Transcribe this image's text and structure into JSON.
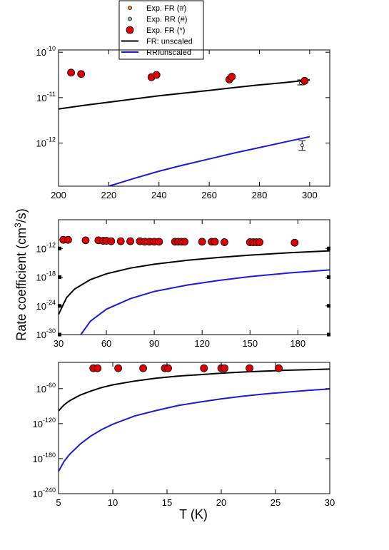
{
  "legend": [
    {
      "label": "Exp. FR (#)",
      "kind": "small-circle",
      "color": "#f0a030"
    },
    {
      "label": "Exp. RR (#)",
      "kind": "small-circle",
      "color": "#7ec8c8"
    },
    {
      "label": "Exp. FR (*)",
      "kind": "big-circle",
      "color": "#e00000"
    },
    {
      "label": "FR: unscaled",
      "kind": "line",
      "color": "#000000"
    },
    {
      "label": "RR:unscaled",
      "kind": "line",
      "color": "#1a1adc"
    }
  ],
  "ylabel_main": "Rate coefficient (cm",
  "ylabel_sup": "3",
  "ylabel_tail": "/s)",
  "xlabel": "T (K)",
  "colors": {
    "fr": "#000000",
    "rr": "#1a1adc",
    "exp": "#e00000"
  },
  "chart_data": [
    {
      "type": "line",
      "panel": "top",
      "xlim": [
        200,
        308
      ],
      "ylim": [
        -12.95,
        -9.95
      ],
      "yscale": "log10",
      "xticks": [
        200,
        220,
        240,
        260,
        280,
        300
      ],
      "xtick_labels": [
        "200",
        "220",
        "240",
        "260",
        "280",
        "300"
      ],
      "yticks": [
        -12,
        -11,
        -10
      ],
      "ytick_base": "10",
      "ytick_exps": [
        "-12",
        "-11",
        "-10"
      ],
      "series": [
        {
          "name": "FR: unscaled",
          "key": "fr",
          "x": [
            200,
            210,
            220,
            230,
            240,
            250,
            260,
            270,
            280,
            290,
            300
          ],
          "y": [
            -11.25,
            -11.17,
            -11.1,
            -11.03,
            -10.96,
            -10.9,
            -10.84,
            -10.78,
            -10.72,
            -10.67,
            -10.61
          ]
        },
        {
          "name": "RR:unscaled",
          "key": "rr",
          "x": [
            220,
            230,
            240,
            250,
            260,
            270,
            280,
            290,
            300
          ],
          "y": [
            -12.95,
            -12.78,
            -12.62,
            -12.48,
            -12.35,
            -12.22,
            -12.1,
            -11.98,
            -11.86
          ]
        }
      ],
      "exp_points": {
        "x": [
          205,
          209,
          237,
          239,
          268,
          269,
          298
        ],
        "y": [
          -10.45,
          -10.48,
          -10.55,
          -10.5,
          -10.6,
          -10.54,
          -10.63
        ]
      },
      "error_bars": [
        {
          "x": 296.5,
          "y": -10.68,
          "ylow": -10.72,
          "yhigh": -10.61
        },
        {
          "x": 297,
          "y": -12.05,
          "ylow": -12.16,
          "yhigh": -11.95
        }
      ]
    },
    {
      "type": "line",
      "panel": "middle",
      "xlim": [
        30,
        200
      ],
      "ylim": [
        -30,
        -6
      ],
      "yscale": "log10",
      "xticks": [
        30,
        60,
        90,
        120,
        150,
        180
      ],
      "xtick_labels": [
        "30",
        "60",
        "90",
        "120",
        "150",
        "180"
      ],
      "yticks": [
        -30,
        -24,
        -18,
        -12
      ],
      "ytick_base": "10",
      "ytick_exps": [
        "-30",
        "-24",
        "-18",
        "-12"
      ],
      "series": [
        {
          "name": "FR: unscaled",
          "key": "fr",
          "x": [
            30,
            35,
            40,
            50,
            60,
            75,
            90,
            110,
            130,
            150,
            175,
            200
          ],
          "y": [
            -25.8,
            -22.3,
            -20.5,
            -18.5,
            -17.3,
            -16.1,
            -15.3,
            -14.5,
            -13.9,
            -13.4,
            -12.9,
            -12.5
          ]
        },
        {
          "name": "RR:unscaled",
          "key": "rr",
          "x": [
            44,
            50,
            60,
            75,
            90,
            110,
            130,
            150,
            175,
            200
          ],
          "y": [
            -30,
            -27.2,
            -24.7,
            -22.5,
            -21,
            -19.7,
            -18.7,
            -17.9,
            -17.1,
            -16.5
          ]
        }
      ],
      "exp_points": {
        "x": [
          33,
          36,
          47,
          55,
          58,
          60,
          63,
          69,
          75,
          81,
          84,
          87,
          90,
          93,
          103,
          105,
          107,
          109,
          120,
          126,
          128,
          134,
          150,
          152,
          154,
          156,
          178
        ],
        "y": [
          -10.2,
          -10.2,
          -10.3,
          -10.3,
          -10.4,
          -10.4,
          -10.5,
          -10.5,
          -10.5,
          -10.5,
          -10.6,
          -10.6,
          -10.6,
          -10.6,
          -10.6,
          -10.6,
          -10.6,
          -10.6,
          -10.6,
          -10.6,
          -10.6,
          -10.7,
          -10.7,
          -10.7,
          -10.7,
          -10.7,
          -10.8
        ]
      }
    },
    {
      "type": "line",
      "panel": "bottom",
      "xlim": [
        5,
        30
      ],
      "ylim": [
        -240,
        -15
      ],
      "yscale": "log10",
      "xticks": [
        5,
        10,
        15,
        20,
        25,
        30
      ],
      "xtick_labels": [
        "5",
        "10",
        "15",
        "20",
        "25",
        "30"
      ],
      "yticks": [
        -240,
        -180,
        -120,
        -60
      ],
      "ytick_base": "10",
      "ytick_exps": [
        "-240",
        "-180",
        "-120",
        "-60"
      ],
      "series": [
        {
          "name": "FR: unscaled",
          "key": "fr",
          "x": [
            5,
            5.5,
            6,
            7,
            8,
            9,
            10,
            12,
            14,
            16,
            18,
            20,
            22,
            24,
            26,
            28,
            30
          ],
          "y": [
            -98,
            -88,
            -81,
            -71,
            -64,
            -58,
            -53.5,
            -47,
            -42,
            -38.5,
            -36,
            -33.5,
            -31.5,
            -30,
            -28.5,
            -27.5,
            -26.5
          ]
        },
        {
          "name": "RR:unscaled",
          "key": "rr",
          "x": [
            5,
            5.5,
            6,
            7,
            8,
            9,
            10,
            12,
            14,
            16,
            18,
            20,
            22,
            24,
            26,
            28,
            30
          ],
          "y": [
            -202,
            -185,
            -173,
            -155,
            -141,
            -130,
            -121,
            -107,
            -97.5,
            -89,
            -83,
            -77.5,
            -73,
            -69,
            -66,
            -63,
            -60.5
          ]
        }
      ],
      "exp_points": {
        "x": [
          8.2,
          8.6,
          10.5,
          12.8,
          14.8,
          15.1,
          18.4,
          20,
          20.3,
          22.6,
          25.3
        ],
        "y": [
          -25,
          -25,
          -25,
          -25,
          -25,
          -25,
          -25,
          -25,
          -25,
          -25,
          -25
        ]
      }
    }
  ]
}
